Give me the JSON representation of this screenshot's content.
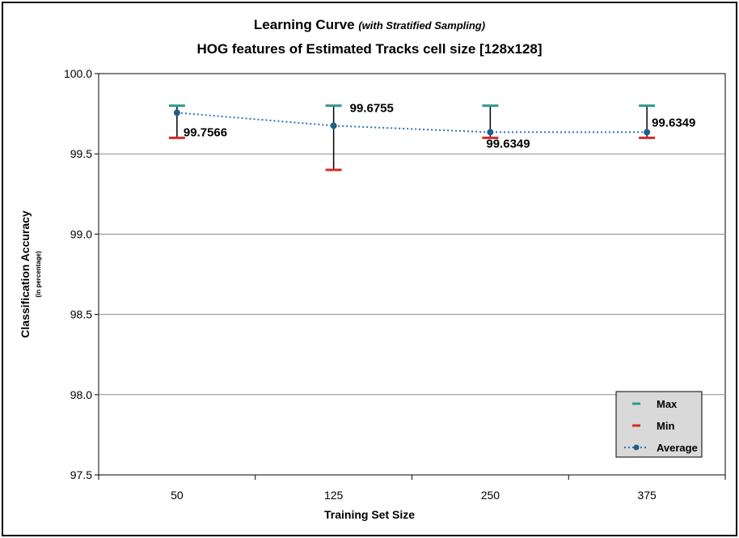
{
  "chart_data": {
    "type": "line",
    "title": "Learning Curve",
    "title_note": "(with Stratified Sampling)",
    "subtitle": "HOG features of Estimated Tracks cell size [128x128]",
    "xlabel": "Training Set Size",
    "ylabel": "Classification Accuracy",
    "ylabel_note": "(in percentage)",
    "categories": [
      "50",
      "125",
      "250",
      "375"
    ],
    "ylim": [
      97.5,
      100.0
    ],
    "yticks": [
      "100.0",
      "99.5",
      "99.0",
      "98.5",
      "98.0",
      "97.5"
    ],
    "ytick_values": [
      100.0,
      99.5,
      99.0,
      98.5,
      98.0,
      97.5
    ],
    "grid": true,
    "legend_position": "bottom-right",
    "series": [
      {
        "name": "Max",
        "values": [
          99.8,
          99.8,
          99.8,
          99.8
        ],
        "color": "#2e9a8e",
        "marker": "dash"
      },
      {
        "name": "Min",
        "values": [
          99.6,
          99.4,
          99.6,
          99.6
        ],
        "color": "#d42a2a",
        "marker": "dash"
      },
      {
        "name": "Average",
        "values": [
          99.7566,
          99.6755,
          99.6349,
          99.6349
        ],
        "color": "#2e74b5",
        "marker": "circle",
        "line": "dotted"
      }
    ],
    "data_labels": [
      "99.7566",
      "99.6755",
      "99.6349",
      "99.6349"
    ]
  }
}
